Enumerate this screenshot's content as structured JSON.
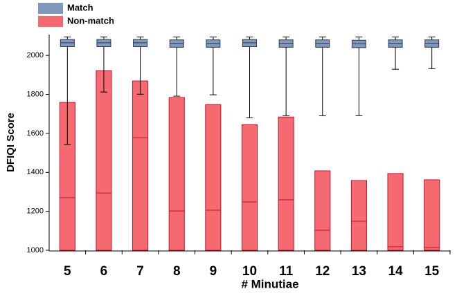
{
  "chart_data": {
    "type": "box",
    "xlabel": "# Minutiae",
    "ylabel": "DFIQI Score",
    "categories": [
      "5",
      "6",
      "7",
      "8",
      "9",
      "10",
      "11",
      "12",
      "13",
      "14",
      "15"
    ],
    "ylim": [
      1000,
      2100
    ],
    "yticks": [
      1000,
      1200,
      1400,
      1600,
      1800,
      2000
    ],
    "legend": "top-left",
    "series": [
      {
        "name": "Match",
        "color": "#8197bb",
        "whisker_low": [
          1543,
          1812,
          1801,
          1791,
          1798,
          1680,
          1690,
          1690,
          1691,
          1929,
          1932
        ],
        "q1": [
          2045,
          2045,
          2045,
          2042,
          2042,
          2045,
          2042,
          2042,
          2040,
          2042,
          2042
        ],
        "median": [
          2065,
          2065,
          2065,
          2062,
          2062,
          2065,
          2062,
          2062,
          2060,
          2062,
          2062
        ],
        "q3": [
          2082,
          2082,
          2082,
          2080,
          2080,
          2082,
          2080,
          2080,
          2078,
          2080,
          2080
        ],
        "whisker_high": [
          2095,
          2095,
          2095,
          2095,
          2095,
          2095,
          2095,
          2095,
          2095,
          2095,
          2095
        ]
      },
      {
        "name": "Non-match",
        "color": "#f46a70",
        "q1": [
          1000,
          1000,
          1000,
          1000,
          1000,
          1000,
          1000,
          1000,
          1000,
          1000,
          1000
        ],
        "median": [
          1270,
          1294,
          1578,
          1202,
          1206,
          1248,
          1259,
          1103,
          1149,
          1018,
          1014
        ],
        "q3": [
          1759,
          1922,
          1869,
          1784,
          1748,
          1645,
          1684,
          1408,
          1358,
          1394,
          1362
        ]
      }
    ]
  }
}
